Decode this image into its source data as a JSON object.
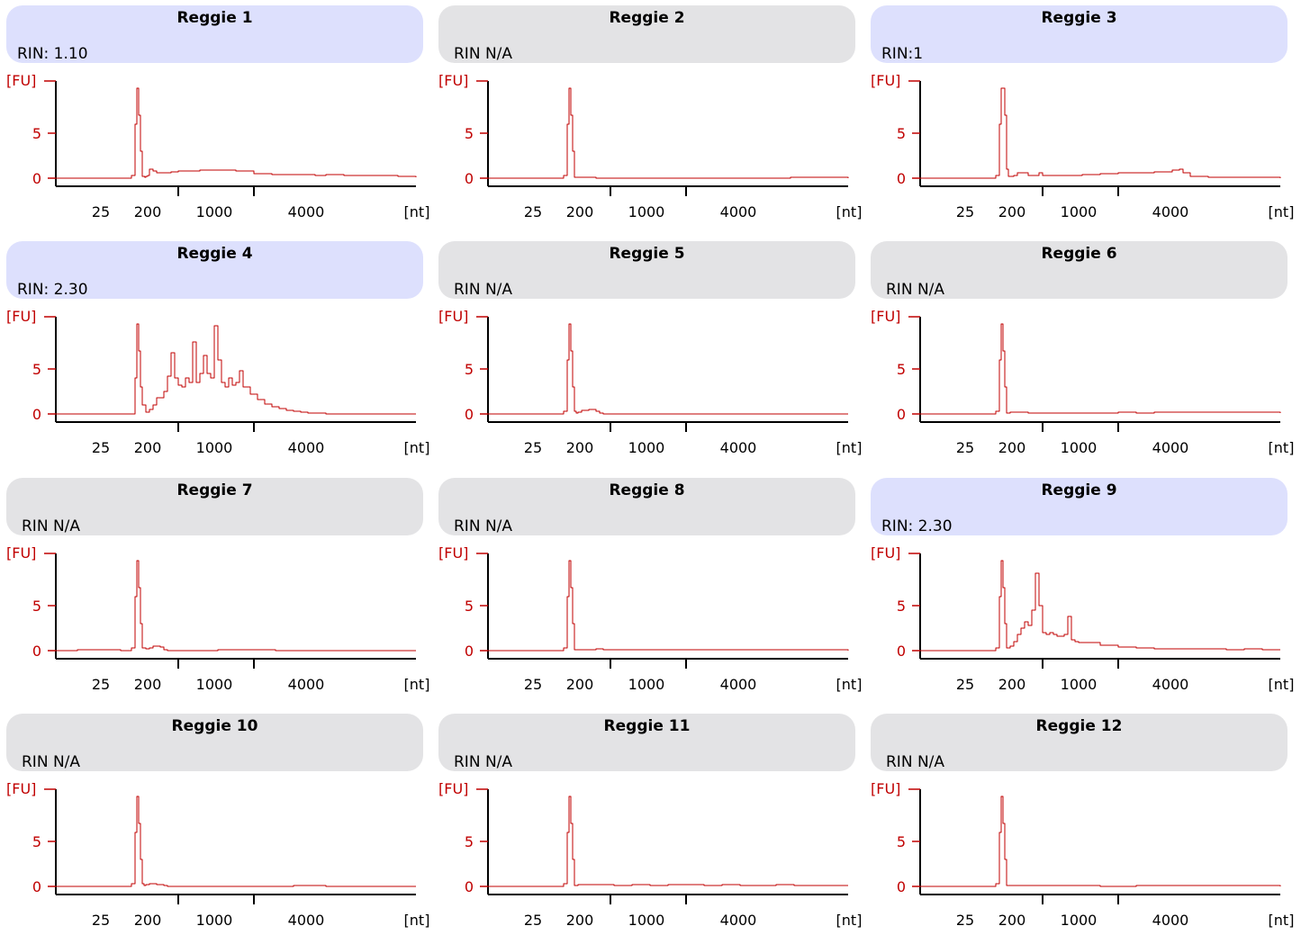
{
  "chart_data": [
    {
      "type": "line",
      "title": "Reggie 1",
      "rin": "RIN: 1.10",
      "highlight": true,
      "ylabel": "[FU]",
      "xlabel": "[nt]",
      "yticks": [
        "0",
        "5"
      ],
      "xticks": [
        "25",
        "200",
        "1000",
        "4000"
      ],
      "ylim": [
        -0.3,
        10.5
      ],
      "x": [
        0,
        18,
        20,
        21,
        22,
        22.5,
        23,
        23.5,
        24,
        24.7,
        25,
        25.5,
        26,
        27,
        28,
        32,
        34,
        36,
        38,
        40,
        45,
        50,
        55,
        60,
        65,
        72,
        75,
        80,
        85,
        90,
        95,
        100
      ],
      "y": [
        0,
        0,
        0,
        0.3,
        6,
        10,
        7,
        3,
        0.2,
        0.1,
        0.2,
        0.3,
        1.0,
        0.8,
        0.6,
        0.7,
        0.8,
        0.8,
        0.8,
        0.9,
        0.9,
        0.8,
        0.5,
        0.4,
        0.4,
        0.3,
        0.4,
        0.3,
        0.3,
        0.3,
        0.2,
        0.1
      ]
    },
    {
      "type": "line",
      "title": "Reggie 2",
      "rin": "RIN N/A",
      "highlight": false,
      "ylabel": "[FU]",
      "xlabel": "[nt]",
      "yticks": [
        "0",
        "5"
      ],
      "xticks": [
        "25",
        "200",
        "1000",
        "4000"
      ],
      "ylim": [
        -0.3,
        10.5
      ],
      "x": [
        0,
        18,
        20,
        21,
        22,
        22.5,
        23,
        23.5,
        24,
        30,
        60,
        80,
        84,
        100
      ],
      "y": [
        0,
        0,
        0,
        0.3,
        6,
        10,
        7,
        3,
        0.1,
        0,
        0,
        0,
        0.1,
        0
      ]
    },
    {
      "type": "line",
      "title": "Reggie 3",
      "rin": "RIN:1",
      "highlight": true,
      "ylabel": "[FU]",
      "xlabel": "[nt]",
      "yticks": [
        "0",
        "5"
      ],
      "xticks": [
        "25",
        "200",
        "1000",
        "4000"
      ],
      "ylim": [
        -0.3,
        10.5
      ],
      "x": [
        0,
        18,
        20,
        21,
        22,
        22.5,
        23,
        23.5,
        24,
        24.5,
        25,
        26,
        27,
        30,
        32,
        33,
        34,
        35,
        40,
        45,
        50,
        55,
        60,
        65,
        70,
        72,
        73,
        75,
        80,
        100
      ],
      "y": [
        0,
        0,
        0,
        0.3,
        6,
        10,
        10,
        7,
        1,
        0.2,
        0.2,
        0.3,
        0.6,
        0.3,
        0.3,
        0.6,
        0.3,
        0.3,
        0.3,
        0.4,
        0.5,
        0.6,
        0.6,
        0.7,
        0.9,
        1.0,
        0.6,
        0.2,
        0.1,
        0
      ]
    },
    {
      "type": "line",
      "title": "Reggie 4",
      "rin": "RIN: 2.30",
      "highlight": true,
      "ylabel": "[FU]",
      "xlabel": "[nt]",
      "yticks": [
        "0",
        "5"
      ],
      "xticks": [
        "25",
        "200",
        "1000",
        "4000"
      ],
      "ylim": [
        -0.3,
        10.5
      ],
      "x": [
        0,
        20,
        21,
        22,
        22.5,
        23,
        23.5,
        24,
        25,
        26,
        27,
        28,
        30,
        31,
        32,
        33,
        34,
        35,
        36,
        37,
        38,
        39,
        40,
        41,
        42,
        43,
        44,
        45,
        46,
        47,
        48,
        49,
        50,
        51,
        52,
        54,
        56,
        58,
        60,
        62,
        64,
        66,
        68,
        70,
        75,
        100
      ],
      "y": [
        0,
        0,
        0,
        4,
        10,
        7,
        3,
        1,
        0.2,
        0.5,
        1,
        1.8,
        2.5,
        4.2,
        6.8,
        4,
        3.2,
        3.0,
        4,
        3.5,
        8.0,
        3.5,
        4.5,
        6.5,
        4.5,
        4.0,
        9.8,
        6.0,
        3.5,
        3.0,
        4.0,
        3.2,
        3.5,
        4.8,
        3,
        2.2,
        1.6,
        1.1,
        0.8,
        0.6,
        0.4,
        0.3,
        0.2,
        0.1,
        0,
        0
      ]
    },
    {
      "type": "line",
      "title": "Reggie 5",
      "rin": "RIN N/A",
      "highlight": false,
      "ylabel": "[FU]",
      "xlabel": "[nt]",
      "yticks": [
        "0",
        "5"
      ],
      "xticks": [
        "25",
        "200",
        "1000",
        "4000"
      ],
      "ylim": [
        -0.3,
        10.5
      ],
      "x": [
        0,
        18,
        20,
        21,
        22,
        22.5,
        23,
        23.5,
        24,
        24.5,
        25,
        26,
        28,
        30,
        31,
        32,
        100
      ],
      "y": [
        0,
        0,
        0,
        0.3,
        6,
        10,
        7,
        3,
        0.3,
        0.1,
        0.2,
        0.4,
        0.5,
        0.3,
        0.1,
        0,
        0
      ]
    },
    {
      "type": "line",
      "title": "Reggie 6",
      "rin": "RIN N/A",
      "highlight": false,
      "ylabel": "[FU]",
      "xlabel": "[nt]",
      "yticks": [
        "0",
        "5"
      ],
      "xticks": [
        "25",
        "200",
        "1000",
        "4000"
      ],
      "ylim": [
        -0.3,
        10.5
      ],
      "x": [
        0,
        18,
        20,
        21,
        22,
        22.5,
        23,
        23.5,
        24,
        25,
        26,
        30,
        40,
        50,
        55,
        60,
        65,
        70,
        75,
        80,
        85,
        90,
        95,
        100
      ],
      "y": [
        0,
        0,
        0,
        0.3,
        6,
        10,
        7,
        3,
        0.1,
        0.2,
        0.2,
        0.1,
        0.1,
        0.1,
        0.2,
        0.1,
        0.2,
        0.2,
        0.2,
        0.2,
        0.2,
        0.2,
        0.2,
        0.1
      ]
    },
    {
      "type": "line",
      "title": "Reggie 7",
      "rin": "RIN N/A",
      "highlight": false,
      "ylabel": "[FU]",
      "xlabel": "[nt]",
      "yticks": [
        "0",
        "5"
      ],
      "xticks": [
        "25",
        "200",
        "1000",
        "4000"
      ],
      "ylim": [
        -0.3,
        10.5
      ],
      "x": [
        0,
        6,
        18,
        20,
        21,
        22,
        22.5,
        23,
        23.5,
        24,
        25,
        26,
        27,
        29,
        30,
        31,
        45,
        60,
        61,
        100
      ],
      "y": [
        0,
        0.1,
        0,
        0,
        0.3,
        6,
        10,
        7,
        3,
        0.3,
        0.2,
        0.3,
        0.5,
        0.4,
        0.1,
        0,
        0.1,
        0.1,
        0,
        0
      ]
    },
    {
      "type": "line",
      "title": "Reggie 8",
      "rin": "RIN N/A",
      "highlight": false,
      "ylabel": "[FU]",
      "xlabel": "[nt]",
      "yticks": [
        "0",
        "5"
      ],
      "xticks": [
        "25",
        "200",
        "1000",
        "4000"
      ],
      "ylim": [
        -0.3,
        10.5
      ],
      "x": [
        0,
        18,
        20,
        21,
        22,
        22.5,
        23,
        23.5,
        24,
        30,
        32,
        35,
        50,
        55,
        100
      ],
      "y": [
        0,
        0,
        0,
        0.3,
        6,
        10,
        7,
        3,
        0.1,
        0.2,
        0.1,
        0.1,
        0.1,
        0.1,
        0
      ]
    },
    {
      "type": "line",
      "title": "Reggie 9",
      "rin": "RIN: 2.30",
      "highlight": true,
      "ylabel": "[FU]",
      "xlabel": "[nt]",
      "yticks": [
        "0",
        "5"
      ],
      "xticks": [
        "25",
        "200",
        "1000",
        "4000"
      ],
      "ylim": [
        -0.3,
        10.5
      ],
      "x": [
        0,
        18,
        20,
        21,
        22,
        22.5,
        23,
        23.5,
        24,
        25,
        26,
        27,
        28,
        29,
        30,
        31,
        32,
        33,
        34,
        35,
        36,
        37,
        38,
        39,
        40,
        41,
        42,
        43,
        44,
        45,
        50,
        55,
        60,
        65,
        70,
        75,
        80,
        85,
        90,
        95,
        100
      ],
      "y": [
        0,
        0,
        0,
        0.3,
        6,
        10,
        7,
        3,
        0.3,
        0.5,
        1.0,
        1.8,
        2.5,
        3.2,
        2.8,
        4.5,
        8.6,
        5.0,
        2.0,
        1.8,
        2.0,
        1.8,
        1.6,
        1.6,
        1.8,
        3.8,
        1.2,
        1.0,
        0.9,
        0.9,
        0.6,
        0.4,
        0.3,
        0.2,
        0.2,
        0.2,
        0.2,
        0.1,
        0.2,
        0.1,
        0.1
      ]
    },
    {
      "type": "line",
      "title": "Reggie  10",
      "rin": "RIN N/A",
      "highlight": false,
      "ylabel": "[FU]",
      "xlabel": "[nt]",
      "yticks": [
        "0",
        "5"
      ],
      "xticks": [
        "25",
        "200",
        "1000",
        "4000"
      ],
      "ylim": [
        -0.3,
        10.5
      ],
      "x": [
        0,
        18,
        20,
        21,
        22,
        22.5,
        23,
        23.5,
        24,
        24.5,
        25,
        26,
        28,
        30,
        31,
        65,
        66,
        70,
        75,
        100
      ],
      "y": [
        0,
        0,
        0,
        0.3,
        6,
        10,
        7,
        3,
        0.3,
        0.1,
        0.2,
        0.3,
        0.2,
        0.1,
        0,
        0,
        0.1,
        0.1,
        0,
        0
      ]
    },
    {
      "type": "line",
      "title": "Reggie 11",
      "rin": "RIN N/A",
      "highlight": false,
      "ylabel": "[FU]",
      "xlabel": "[nt]",
      "yticks": [
        "0",
        "5"
      ],
      "xticks": [
        "25",
        "200",
        "1000",
        "4000"
      ],
      "ylim": [
        -0.3,
        10.5
      ],
      "x": [
        0,
        18,
        20,
        21,
        22,
        22.5,
        23,
        23.5,
        24,
        25,
        30,
        35,
        40,
        45,
        50,
        55,
        60,
        65,
        70,
        75,
        80,
        85,
        90,
        95,
        100
      ],
      "y": [
        0,
        0,
        0,
        0.3,
        6,
        10,
        7,
        3,
        0.1,
        0.2,
        0.2,
        0.1,
        0.2,
        0.1,
        0.2,
        0.2,
        0.1,
        0.2,
        0.1,
        0.1,
        0.2,
        0.1,
        0.1,
        0.1,
        0.1
      ]
    },
    {
      "type": "line",
      "title": "Reggie 12",
      "rin": "RIN N/A",
      "highlight": false,
      "ylabel": "[FU]",
      "xlabel": "[nt]",
      "yticks": [
        "0",
        "5"
      ],
      "xticks": [
        "25",
        "200",
        "1000",
        "4000"
      ],
      "ylim": [
        -0.3,
        10.5
      ],
      "x": [
        0,
        18,
        20,
        21,
        22,
        22.5,
        23,
        23.5,
        24,
        30,
        50,
        60,
        70,
        80,
        85,
        90,
        95,
        100
      ],
      "y": [
        0,
        0,
        0,
        0.3,
        6,
        10,
        7,
        3,
        0.1,
        0.1,
        0,
        0.1,
        0.1,
        0.1,
        0.1,
        0.1,
        0.1,
        0
      ]
    }
  ],
  "colors": {
    "trace": "#c00000",
    "axis": "#000000",
    "ylabel": "#c00000",
    "header_highlight": "#dde0fd",
    "header_default": "#e3e3e5"
  }
}
